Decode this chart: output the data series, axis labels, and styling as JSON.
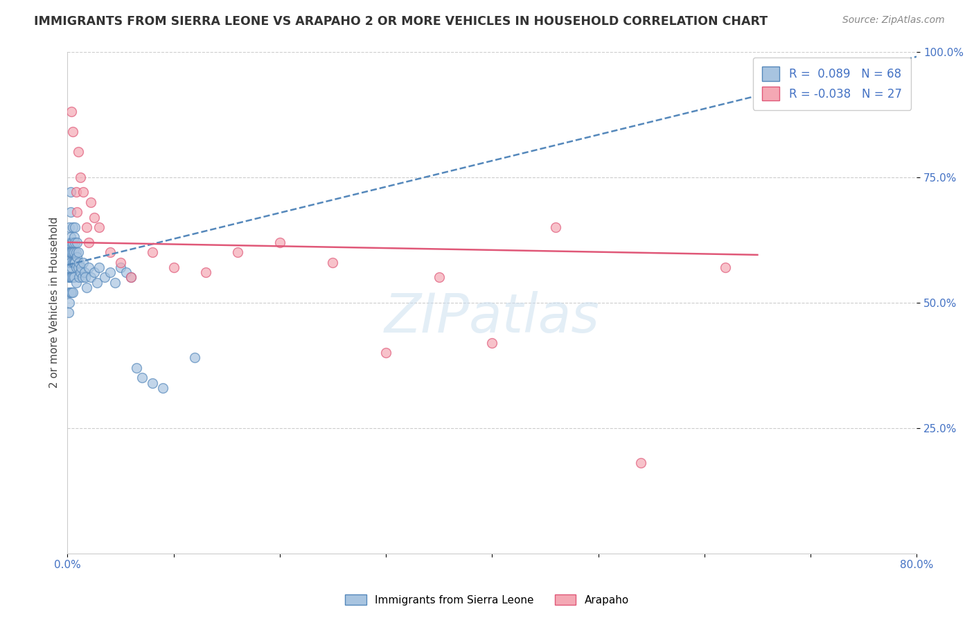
{
  "title": "IMMIGRANTS FROM SIERRA LEONE VS ARAPAHO 2 OR MORE VEHICLES IN HOUSEHOLD CORRELATION CHART",
  "source_text": "Source: ZipAtlas.com",
  "ylabel": "2 or more Vehicles in Household",
  "xlim": [
    0.0,
    0.8
  ],
  "ylim": [
    0.0,
    1.0
  ],
  "xticks": [
    0.0,
    0.1,
    0.2,
    0.3,
    0.4,
    0.5,
    0.6,
    0.7,
    0.8
  ],
  "xticklabels": [
    "0.0%",
    "",
    "",
    "",
    "",
    "",
    "",
    "",
    "80.0%"
  ],
  "yticks": [
    0.25,
    0.5,
    0.75,
    1.0
  ],
  "yticklabels": [
    "25.0%",
    "50.0%",
    "75.0%",
    "100.0%"
  ],
  "blue_R": 0.089,
  "blue_N": 68,
  "pink_R": -0.038,
  "pink_N": 27,
  "blue_color": "#a8c4e0",
  "pink_color": "#f4a8b4",
  "blue_line_color": "#5588bb",
  "pink_line_color": "#e05878",
  "legend_label_blue": "Immigrants from Sierra Leone",
  "legend_label_pink": "Arapaho",
  "watermark": "ZIPatlas",
  "blue_x": [
    0.001,
    0.001,
    0.001,
    0.001,
    0.001,
    0.002,
    0.002,
    0.002,
    0.002,
    0.002,
    0.002,
    0.003,
    0.003,
    0.003,
    0.003,
    0.003,
    0.003,
    0.003,
    0.004,
    0.004,
    0.004,
    0.004,
    0.004,
    0.005,
    0.005,
    0.005,
    0.005,
    0.005,
    0.005,
    0.006,
    0.006,
    0.006,
    0.006,
    0.007,
    0.007,
    0.007,
    0.008,
    0.008,
    0.008,
    0.009,
    0.009,
    0.01,
    0.01,
    0.011,
    0.011,
    0.012,
    0.013,
    0.014,
    0.015,
    0.016,
    0.017,
    0.018,
    0.02,
    0.022,
    0.025,
    0.028,
    0.03,
    0.035,
    0.04,
    0.045,
    0.05,
    0.055,
    0.06,
    0.065,
    0.07,
    0.08,
    0.09,
    0.12
  ],
  "blue_y": [
    0.6,
    0.57,
    0.55,
    0.52,
    0.48,
    0.65,
    0.62,
    0.6,
    0.58,
    0.55,
    0.5,
    0.72,
    0.68,
    0.63,
    0.6,
    0.58,
    0.55,
    0.52,
    0.62,
    0.6,
    0.57,
    0.55,
    0.52,
    0.65,
    0.62,
    0.6,
    0.58,
    0.55,
    0.52,
    0.63,
    0.6,
    0.58,
    0.55,
    0.65,
    0.62,
    0.58,
    0.6,
    0.57,
    0.54,
    0.62,
    0.59,
    0.6,
    0.57,
    0.58,
    0.55,
    0.56,
    0.57,
    0.55,
    0.58,
    0.56,
    0.55,
    0.53,
    0.57,
    0.55,
    0.56,
    0.54,
    0.57,
    0.55,
    0.56,
    0.54,
    0.57,
    0.56,
    0.55,
    0.37,
    0.35,
    0.34,
    0.33,
    0.39
  ],
  "pink_x": [
    0.004,
    0.005,
    0.008,
    0.009,
    0.01,
    0.012,
    0.015,
    0.018,
    0.02,
    0.022,
    0.025,
    0.03,
    0.04,
    0.05,
    0.06,
    0.08,
    0.1,
    0.13,
    0.16,
    0.2,
    0.25,
    0.3,
    0.35,
    0.4,
    0.46,
    0.54,
    0.62
  ],
  "pink_y": [
    0.88,
    0.84,
    0.72,
    0.68,
    0.8,
    0.75,
    0.72,
    0.65,
    0.62,
    0.7,
    0.67,
    0.65,
    0.6,
    0.58,
    0.55,
    0.6,
    0.57,
    0.56,
    0.6,
    0.62,
    0.58,
    0.4,
    0.55,
    0.42,
    0.65,
    0.18,
    0.57
  ],
  "blue_trend_x": [
    0.0,
    0.8
  ],
  "blue_trend_y": [
    0.575,
    0.99
  ],
  "pink_trend_x": [
    0.0,
    0.65
  ],
  "pink_trend_y": [
    0.62,
    0.595
  ]
}
